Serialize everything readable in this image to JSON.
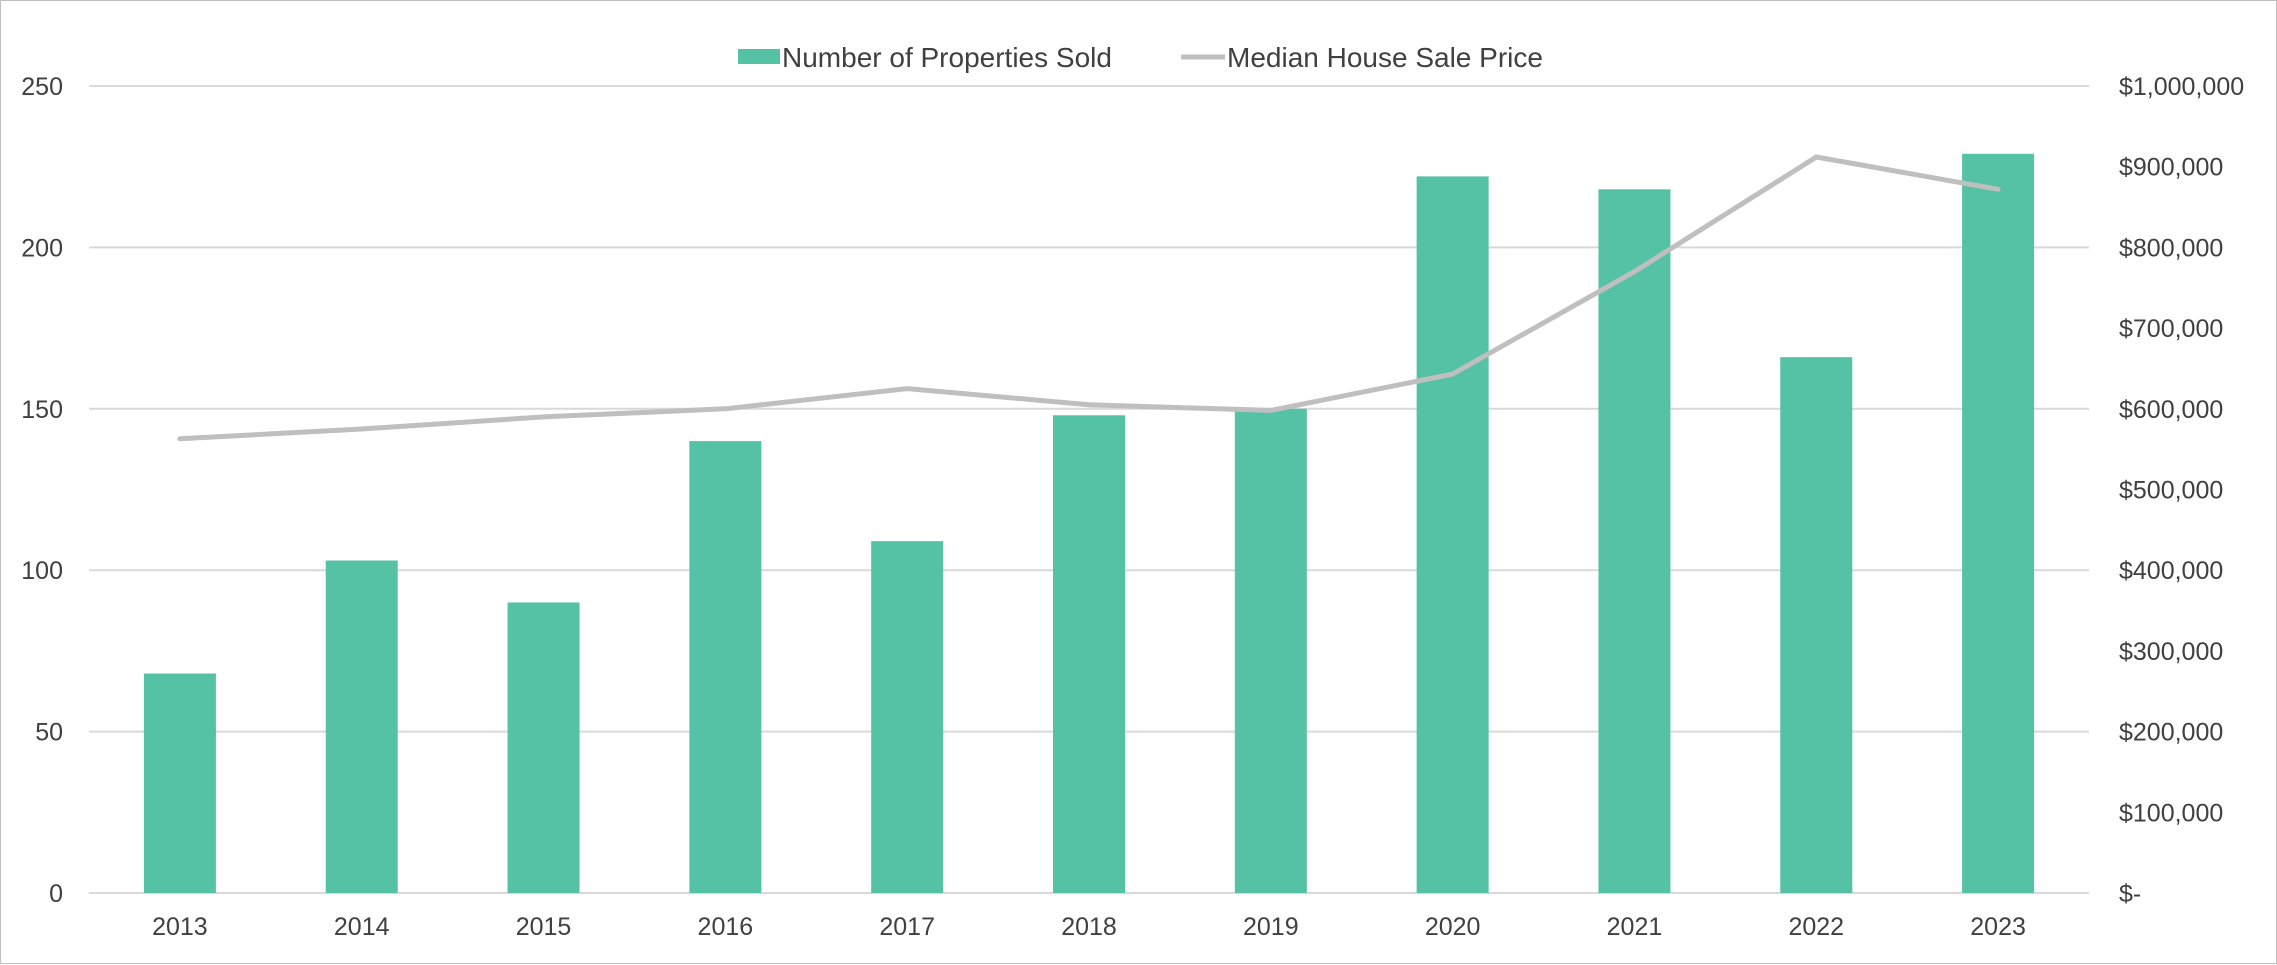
{
  "chart_data": {
    "type": "bar+line",
    "title": "",
    "categories": [
      "2013",
      "2014",
      "2015",
      "2016",
      "2017",
      "2018",
      "2019",
      "2020",
      "2021",
      "2022",
      "2023"
    ],
    "series": [
      {
        "name": "Number of Properties Sold",
        "type": "bar",
        "axis": "left",
        "color": "#55C1A5",
        "values": [
          68,
          103,
          90,
          140,
          109,
          148,
          150,
          222,
          218,
          166,
          229
        ]
      },
      {
        "name": "Median House Sale Price",
        "type": "line",
        "axis": "right",
        "color": "#BFBFBF",
        "values": [
          563000,
          575000,
          590000,
          600000,
          625000,
          605000,
          598000,
          643000,
          770000,
          912000,
          872000
        ]
      }
    ],
    "y_left": {
      "min": 0,
      "max": 250,
      "ticks": [
        0,
        50,
        100,
        150,
        200,
        250
      ],
      "tick_labels": [
        "0",
        "50",
        "100",
        "150",
        "200",
        "250"
      ]
    },
    "y_right": {
      "min": 0,
      "max": 1000000,
      "ticks": [
        0,
        100000,
        200000,
        300000,
        400000,
        500000,
        600000,
        700000,
        800000,
        900000,
        1000000
      ],
      "tick_labels": [
        "$-",
        "$100,000",
        "$200,000",
        "$300,000",
        "$400,000",
        "$500,000",
        "$600,000",
        "$700,000",
        "$800,000",
        "$900,000",
        "$1,000,000"
      ]
    },
    "grid": true,
    "legend": {
      "position": "top-center",
      "entries": [
        "Number of Properties Sold",
        "Median House Sale Price"
      ]
    },
    "colors": {
      "gridline": "#D9D9D9",
      "text": "#404040"
    }
  }
}
